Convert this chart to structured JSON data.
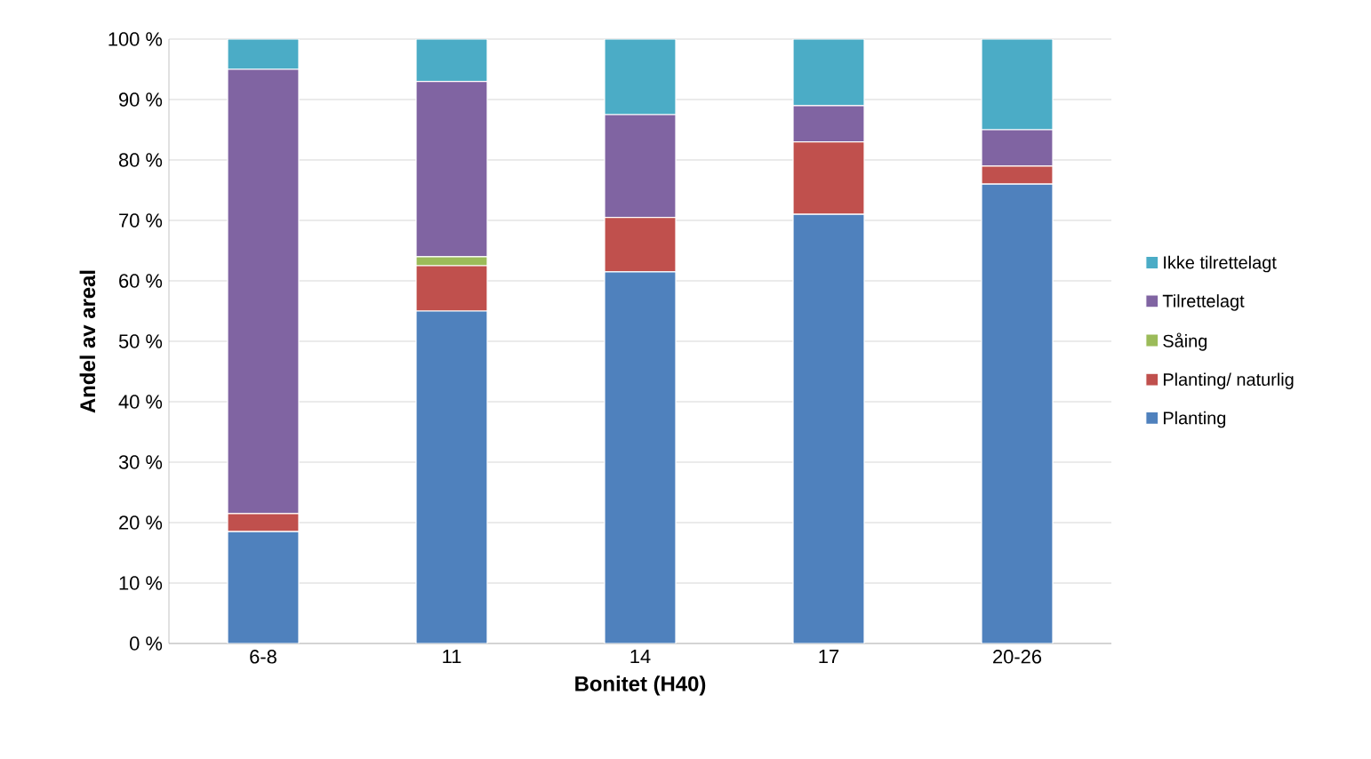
{
  "chart_data": {
    "type": "bar",
    "stacked": true,
    "xlabel": "Bonitet (H40)",
    "ylabel": "Andel av areal",
    "categories": [
      "6-8",
      "11",
      "14",
      "17",
      "20-26"
    ],
    "series": [
      {
        "name": "Planting",
        "color": "#4f81bd",
        "values": [
          18.5,
          55,
          61.5,
          71,
          76
        ]
      },
      {
        "name": "Planting/ naturlig",
        "color": "#c0504d",
        "values": [
          3,
          7.5,
          9,
          12,
          3
        ]
      },
      {
        "name": "Såing",
        "color": "#9bbb59",
        "values": [
          0,
          1.5,
          0,
          0,
          0
        ]
      },
      {
        "name": "Tilrettelagt",
        "color": "#8064a2",
        "values": [
          73.5,
          29,
          17,
          6,
          6
        ]
      },
      {
        "name": "Ikke tilrettelagt",
        "color": "#4bacc6",
        "values": [
          5,
          7,
          12.5,
          11,
          15
        ]
      }
    ],
    "ylim": [
      0,
      100
    ],
    "yticks": [
      {
        "value": 0,
        "label": "0 %"
      },
      {
        "value": 10,
        "label": "10 %"
      },
      {
        "value": 20,
        "label": "20 %"
      },
      {
        "value": 30,
        "label": "30 %"
      },
      {
        "value": 40,
        "label": "40 %"
      },
      {
        "value": 50,
        "label": "50 %"
      },
      {
        "value": 60,
        "label": "60 %"
      },
      {
        "value": 70,
        "label": "70 %"
      },
      {
        "value": 80,
        "label": "80 %"
      },
      {
        "value": 90,
        "label": "90 %"
      },
      {
        "value": 100,
        "label": "100 %"
      }
    ],
    "grid": "y",
    "legend": "right"
  }
}
